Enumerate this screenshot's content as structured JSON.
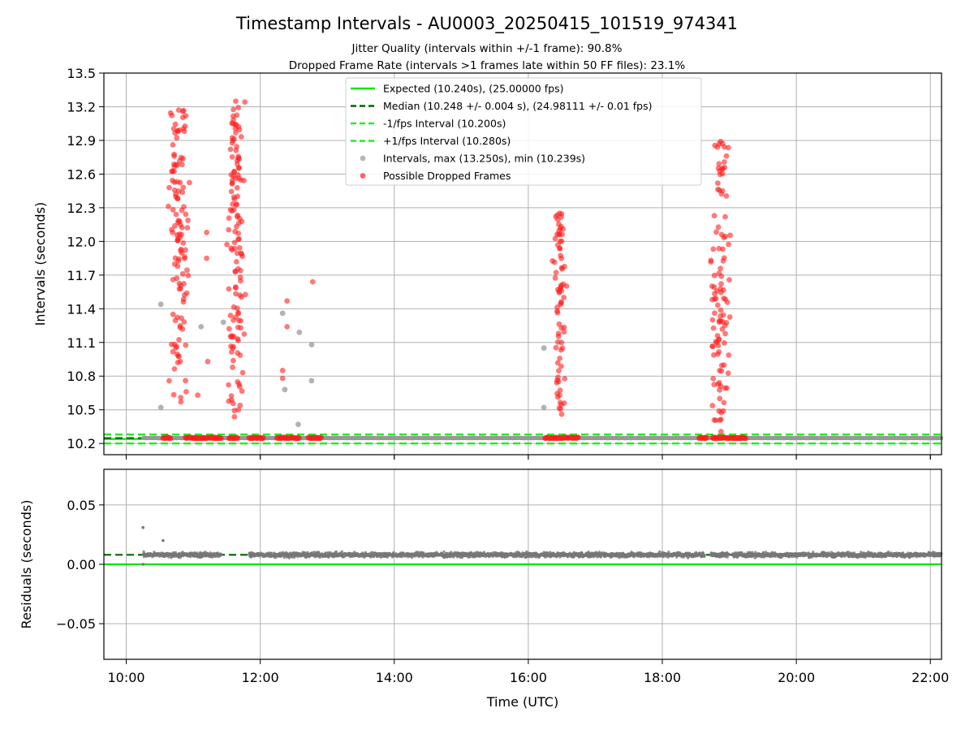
{
  "figure": {
    "title": "Timestamp Intervals - AU0003_20250415_101519_974341",
    "subtitle_1": "Jitter Quality (intervals within +/-1 frame): 90.8%",
    "subtitle_2": "Dropped Frame Rate (intervals >1 frames late within 50 FF files): 23.1%"
  },
  "chart_data": [
    {
      "type": "scatter",
      "panel": "intervals",
      "ylabel": "Intervals (seconds)",
      "xlabel": "",
      "xlim": [
        "09:40",
        "22:10"
      ],
      "ylim": [
        10.1,
        13.5
      ],
      "xticks": [
        "10:00",
        "12:00",
        "14:00",
        "16:00",
        "18:00",
        "20:00",
        "22:00"
      ],
      "yticks": [
        "10.2",
        "10.5",
        "10.8",
        "11.1",
        "11.4",
        "11.7",
        "12.0",
        "12.3",
        "12.6",
        "12.9",
        "13.2",
        "13.5"
      ],
      "grid": true,
      "legend_position": "upper center",
      "legend": [
        {
          "label": "Expected (10.240s), (25.00000 fps)",
          "color": "#00e600",
          "style": "solid"
        },
        {
          "label": "Median (10.248 +/- 0.004 s), (24.98111 +/- 0.01 fps)",
          "color": "#006400",
          "style": "dashed"
        },
        {
          "label": "-1/fps Interval (10.200s)",
          "color": "#22ee22",
          "style": "dashed"
        },
        {
          "label": "+1/fps Interval (10.280s)",
          "color": "#22ee22",
          "style": "dashed"
        },
        {
          "label": "Intervals, max (13.250s), min (10.239s)",
          "color": "#999999",
          "style": "marker"
        },
        {
          "label": "Possible Dropped Frames",
          "color": "#ff2020",
          "style": "marker"
        }
      ],
      "lines": {
        "expected": 10.24,
        "median": 10.248,
        "lower": 10.2,
        "upper": 10.28
      },
      "intervals_max": 13.25,
      "intervals_min": 10.239,
      "baseline_span": [
        "10:15",
        "22:10"
      ],
      "dropped_clusters": [
        {
          "center": "10:47",
          "spread_min": 12,
          "count": 120,
          "y_min": 10.55,
          "y_max": 13.17
        },
        {
          "center": "11:38",
          "spread_min": 10,
          "count": 130,
          "y_min": 10.35,
          "y_max": 13.25
        },
        {
          "center": "16:28",
          "spread_min": 8,
          "count": 75,
          "y_min": 10.45,
          "y_max": 12.25
        },
        {
          "center": "18:52",
          "spread_min": 12,
          "count": 110,
          "y_min": 10.3,
          "y_max": 12.89
        }
      ],
      "dropped_band_at_baseline": [
        [
          "10:33",
          "10:40"
        ],
        [
          "10:53",
          "11:25"
        ],
        [
          "11:32",
          "11:40"
        ],
        [
          "11:50",
          "12:03"
        ],
        [
          "12:15",
          "12:35"
        ],
        [
          "12:43",
          "12:55"
        ],
        [
          "16:15",
          "16:45"
        ],
        [
          "18:33",
          "18:40"
        ],
        [
          "18:45",
          "19:15"
        ]
      ],
      "extra_points": [
        {
          "x": "10:31",
          "y": 11.44,
          "kind": "gray"
        },
        {
          "x": "10:31",
          "y": 10.52,
          "kind": "gray"
        },
        {
          "x": "11:07",
          "y": 11.24,
          "kind": "gray"
        },
        {
          "x": "11:27",
          "y": 11.28,
          "kind": "gray"
        },
        {
          "x": "12:20",
          "y": 11.36,
          "kind": "gray"
        },
        {
          "x": "12:22",
          "y": 10.68,
          "kind": "gray"
        },
        {
          "x": "12:35",
          "y": 11.19,
          "kind": "gray"
        },
        {
          "x": "12:34",
          "y": 10.37,
          "kind": "gray"
        },
        {
          "x": "12:46",
          "y": 11.08,
          "kind": "gray"
        },
        {
          "x": "12:46",
          "y": 10.76,
          "kind": "gray"
        },
        {
          "x": "16:14",
          "y": 11.05,
          "kind": "gray"
        },
        {
          "x": "16:14",
          "y": 10.52,
          "kind": "gray"
        },
        {
          "x": "11:04",
          "y": 10.63,
          "kind": "red"
        },
        {
          "x": "11:12",
          "y": 11.85,
          "kind": "red"
        },
        {
          "x": "11:12",
          "y": 12.08,
          "kind": "red"
        },
        {
          "x": "11:13",
          "y": 10.93,
          "kind": "red"
        },
        {
          "x": "12:20",
          "y": 10.85,
          "kind": "red"
        },
        {
          "x": "12:20",
          "y": 10.78,
          "kind": "red"
        },
        {
          "x": "12:24",
          "y": 11.47,
          "kind": "red"
        },
        {
          "x": "12:24",
          "y": 11.24,
          "kind": "red"
        },
        {
          "x": "12:47",
          "y": 11.64,
          "kind": "red"
        }
      ]
    },
    {
      "type": "scatter",
      "panel": "residuals",
      "ylabel": "Residuals (seconds)",
      "xlabel": "Time (UTC)",
      "xlim": [
        "09:40",
        "22:10"
      ],
      "ylim": [
        -0.08,
        0.08
      ],
      "xticks": [
        "10:00",
        "12:00",
        "14:00",
        "16:00",
        "18:00",
        "20:00",
        "22:00"
      ],
      "yticks": [
        "0.05",
        "0.00",
        "−0.05"
      ],
      "grid": true,
      "lines": {
        "zero": 0.0,
        "median": 0.008
      },
      "residual_mean": 0.008,
      "residual_spread": 0.003,
      "outliers": [
        {
          "x": "10:15",
          "y": 0.031
        },
        {
          "x": "10:33",
          "y": 0.02
        },
        {
          "x": "10:15",
          "y": 0.0
        }
      ]
    }
  ]
}
